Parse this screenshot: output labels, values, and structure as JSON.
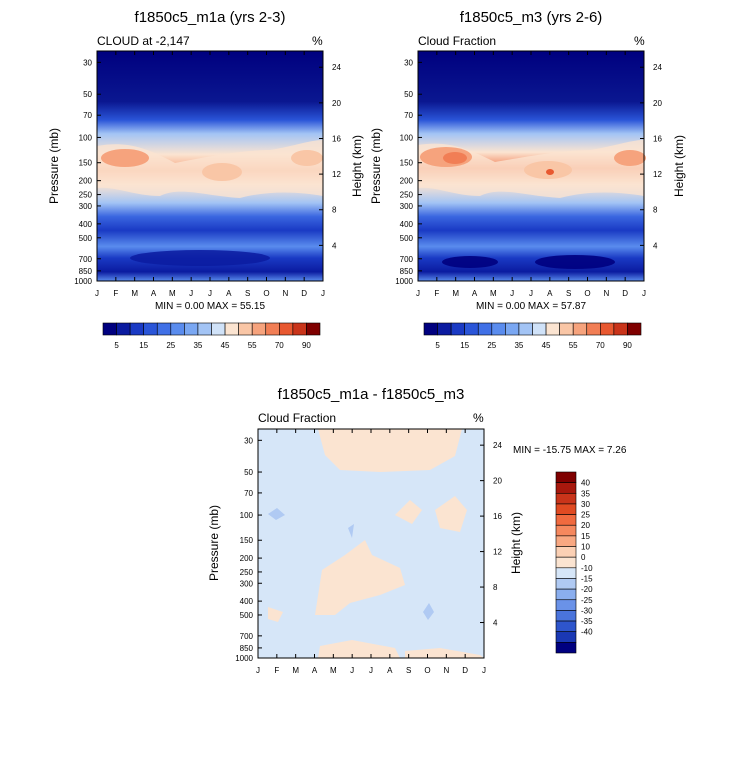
{
  "chart_data": [
    {
      "type": "heatmap",
      "title": "f1850c5_m1a (yrs 2-3)",
      "left_label": "CLOUD at -2,147",
      "unit": "%",
      "ylabel": "Pressure (mb)",
      "ylabel_right": "Height (km)",
      "x_ticks": [
        "J",
        "F",
        "M",
        "A",
        "M",
        "J",
        "J",
        "A",
        "S",
        "O",
        "N",
        "D",
        "J"
      ],
      "y_ticks": [
        30,
        50,
        70,
        100,
        150,
        200,
        250,
        300,
        400,
        500,
        700,
        850,
        1000
      ],
      "y2_ticks": [
        24,
        20,
        16,
        12,
        8,
        4
      ],
      "ylim": [
        25,
        1000
      ],
      "min_label": "MIN =   0.00 MAX =  55.15",
      "field_min": 0.0,
      "field_max": 55.15,
      "colorbar": {
        "levels": [
          5,
          10,
          15,
          20,
          25,
          30,
          35,
          40,
          45,
          50,
          55,
          60,
          70,
          80,
          90
        ],
        "labels": [
          "5",
          "15",
          "25",
          "35",
          "45",
          "55",
          "70",
          "90"
        ],
        "colors": [
          "#00007f",
          "#0b1ba0",
          "#1a3ac4",
          "#2a55d8",
          "#4070e6",
          "#5a8cee",
          "#7aa7f2",
          "#a3c4f5",
          "#d0e2f8",
          "#fbe4d1",
          "#f9c6a6",
          "#f6a37d",
          "#f17e55",
          "#e85830",
          "#c9341a",
          "#7f0000"
        ]
      }
    },
    {
      "type": "heatmap",
      "title": "f1850c5_m3 (yrs 2-6)",
      "left_label": "Cloud Fraction",
      "unit": "%",
      "ylabel": "Pressure (mb)",
      "ylabel_right": "Height (km)",
      "x_ticks": [
        "J",
        "F",
        "M",
        "A",
        "M",
        "J",
        "J",
        "A",
        "S",
        "O",
        "N",
        "D",
        "J"
      ],
      "y_ticks": [
        30,
        50,
        70,
        100,
        150,
        200,
        250,
        300,
        400,
        500,
        700,
        850,
        1000
      ],
      "y2_ticks": [
        24,
        20,
        16,
        12,
        8,
        4
      ],
      "ylim": [
        25,
        1000
      ],
      "min_label": "MIN =   0.00 MAX =  57.87",
      "field_min": 0.0,
      "field_max": 57.87,
      "colorbar": {
        "levels": [
          5,
          10,
          15,
          20,
          25,
          30,
          35,
          40,
          45,
          50,
          55,
          60,
          70,
          80,
          90
        ],
        "labels": [
          "5",
          "15",
          "25",
          "35",
          "45",
          "55",
          "70",
          "90"
        ],
        "colors": [
          "#00007f",
          "#0b1ba0",
          "#1a3ac4",
          "#2a55d8",
          "#4070e6",
          "#5a8cee",
          "#7aa7f2",
          "#a3c4f5",
          "#d0e2f8",
          "#fbe4d1",
          "#f9c6a6",
          "#f6a37d",
          "#f17e55",
          "#e85830",
          "#c9341a",
          "#7f0000"
        ]
      }
    },
    {
      "type": "heatmap",
      "title": "f1850c5_m1a - f1850c5_m3",
      "left_label": "Cloud Fraction",
      "unit": "%",
      "ylabel": "Pressure (mb)",
      "ylabel_right": "Height (km)",
      "x_ticks": [
        "J",
        "F",
        "M",
        "A",
        "M",
        "J",
        "J",
        "A",
        "S",
        "O",
        "N",
        "D",
        "J"
      ],
      "y_ticks": [
        30,
        50,
        70,
        100,
        150,
        200,
        250,
        300,
        400,
        500,
        700,
        850,
        1000
      ],
      "y2_ticks": [
        24,
        20,
        16,
        12,
        8,
        4
      ],
      "ylim": [
        25,
        1000
      ],
      "min_label": "MIN = -15.75 MAX =   7.26",
      "field_min": -15.75,
      "field_max": 7.26,
      "colorbar": {
        "labels": [
          "40",
          "35",
          "30",
          "25",
          "20",
          "15",
          "10",
          "0",
          "-10",
          "-15",
          "-20",
          "-25",
          "-30",
          "-35",
          "-40"
        ],
        "colors": [
          "#7f0000",
          "#a8180d",
          "#c9341a",
          "#e04a22",
          "#f06a3f",
          "#f5885e",
          "#f8a882",
          "#fbd0b4",
          "#fbe4d1",
          "#d6e6f8",
          "#b0caf3",
          "#8aaeee",
          "#6a92e8",
          "#4a74dc",
          "#2e55cc",
          "#1a38b4",
          "#000080"
        ]
      }
    }
  ]
}
